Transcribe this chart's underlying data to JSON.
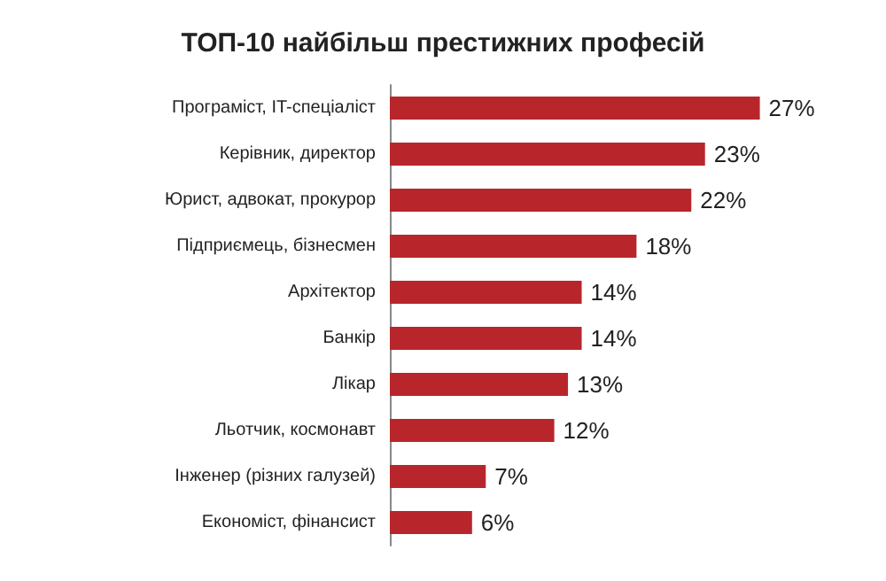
{
  "chart_data": {
    "type": "bar",
    "orientation": "horizontal",
    "title": "ТОП-10 найбільш престижних професій",
    "categories": [
      "Програміст, IT-спеціаліст",
      "Керівник, директор",
      "Юрист, адвокат, прокурор",
      "Підприємець, бізнесмен",
      "Архітектор",
      "Банкір",
      "Лікар",
      "Льотчик, космонавт",
      "Інженер (різних галузей)",
      "Економіст, фінансист"
    ],
    "values": [
      27,
      23,
      22,
      18,
      14,
      14,
      13,
      12,
      7,
      6
    ],
    "value_labels": [
      "27%",
      "23%",
      "22%",
      "18%",
      "14%",
      "14%",
      "13%",
      "12%",
      "7%",
      "6%"
    ],
    "color": "#b8262b"
  }
}
